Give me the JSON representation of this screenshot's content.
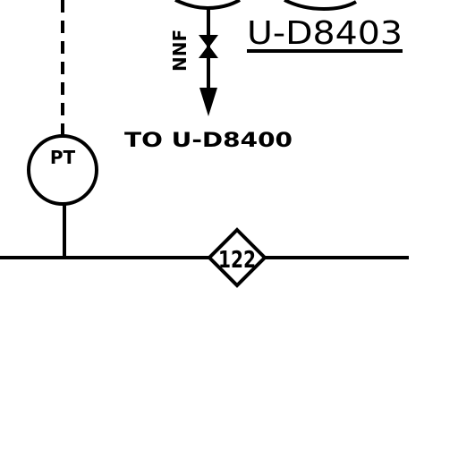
{
  "diagram": {
    "equipment_tag": "U-D8403",
    "valve_label": "NNF",
    "destination_label": "TO U-D8400",
    "instrument_tag": "PT",
    "line_marker_number": "122"
  },
  "colors": {
    "line": "#000000",
    "background": "#ffffff"
  }
}
